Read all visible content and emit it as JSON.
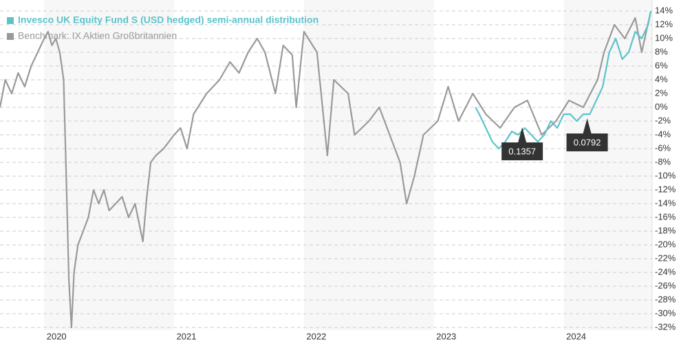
{
  "chart_data": {
    "type": "line",
    "xlim": [
      2019.66,
      2024.68
    ],
    "xticks": [
      2020,
      2021,
      2022,
      2023,
      2024
    ],
    "ylim": [
      -32.4,
      15.6
    ],
    "yticks": [
      {
        "value": 14,
        "label": "14%"
      },
      {
        "value": 12,
        "label": "12%"
      },
      {
        "value": 10,
        "label": "10%"
      },
      {
        "value": 8,
        "label": "8%"
      },
      {
        "value": 6,
        "label": "6%"
      },
      {
        "value": 4,
        "label": "4%"
      },
      {
        "value": 2,
        "label": "2%"
      },
      {
        "value": 0,
        "label": "0%"
      },
      {
        "value": -2,
        "label": "-2%"
      },
      {
        "value": -4,
        "label": "-4%"
      },
      {
        "value": -6,
        "label": "-6%"
      },
      {
        "value": -8,
        "label": "-8%"
      },
      {
        "value": -10,
        "label": "-10%"
      },
      {
        "value": -12,
        "label": "-12%"
      },
      {
        "value": -14,
        "label": "-14%"
      },
      {
        "value": -16,
        "label": "-16%"
      },
      {
        "value": -18,
        "label": "-18%"
      },
      {
        "value": -20,
        "label": "-20%"
      },
      {
        "value": -22,
        "label": "-22%"
      },
      {
        "value": -24,
        "label": "-24%"
      },
      {
        "value": -26,
        "label": "-26%"
      },
      {
        "value": -28,
        "label": "-28%"
      },
      {
        "value": -30,
        "label": "-30%"
      },
      {
        "value": -32,
        "label": "-32%"
      }
    ],
    "grid": true,
    "legend": "top-left",
    "series": [
      {
        "name": "Invesco UK Equity Fund S (USD hedged) semi-annual distribution",
        "color": "#5bc3cb",
        "x": [
          2023.32,
          2023.35,
          2023.4,
          2023.45,
          2023.5,
          2023.55,
          2023.6,
          2023.65,
          2023.7,
          2023.75,
          2023.8,
          2023.85,
          2023.9,
          2023.95,
          2024.0,
          2024.05,
          2024.1,
          2024.15,
          2024.2,
          2024.25,
          2024.3,
          2024.35,
          2024.4,
          2024.45,
          2024.5,
          2024.55,
          2024.6,
          2024.65,
          2024.67
        ],
        "values": [
          0,
          -1,
          -3,
          -5,
          -6,
          -5,
          -3.5,
          -4,
          -3,
          -4,
          -5,
          -4,
          -2,
          -3,
          -1,
          -1,
          -2,
          -1,
          -1,
          1,
          3,
          8,
          10,
          7,
          8,
          11,
          10,
          12,
          14
        ]
      },
      {
        "name": "Benchmark: IX Aktien Großbritannien",
        "color": "#999999",
        "x": [
          2019.66,
          2019.7,
          2019.75,
          2019.8,
          2019.85,
          2019.9,
          2019.95,
          2020.0,
          2020.03,
          2020.06,
          2020.09,
          2020.12,
          2020.15,
          2020.17,
          2020.19,
          2020.21,
          2020.23,
          2020.26,
          2020.3,
          2020.34,
          2020.38,
          2020.42,
          2020.46,
          2020.5,
          2020.55,
          2020.6,
          2020.65,
          2020.7,
          2020.76,
          2020.79,
          2020.82,
          2020.86,
          2020.92,
          2021.0,
          2021.05,
          2021.1,
          2021.15,
          2021.25,
          2021.35,
          2021.43,
          2021.5,
          2021.57,
          2021.64,
          2021.7,
          2021.78,
          2021.84,
          2021.91,
          2021.94,
          2022.0,
          2022.1,
          2022.18,
          2022.23,
          2022.34,
          2022.39,
          2022.5,
          2022.58,
          2022.66,
          2022.74,
          2022.79,
          2022.85,
          2022.92,
          2023.03,
          2023.11,
          2023.19,
          2023.3,
          2023.4,
          2023.51,
          2023.62,
          2023.72,
          2023.83,
          2023.94,
          2024.04,
          2024.15,
          2024.26,
          2024.31,
          2024.39,
          2024.47,
          2024.55,
          2024.6,
          2024.67
        ],
        "values": [
          0,
          4,
          2,
          5,
          3,
          6,
          8,
          10,
          11,
          9,
          10,
          8,
          4,
          -10,
          -25,
          -32,
          -24,
          -20,
          -18,
          -16,
          -12,
          -14,
          -12,
          -15,
          -14,
          -13,
          -16,
          -14,
          -19.5,
          -13,
          -8,
          -7,
          -6,
          -4,
          -3,
          -6,
          -1,
          2,
          4,
          6.6,
          5,
          8,
          10,
          8,
          2,
          9,
          7.6,
          0,
          11,
          8,
          -7,
          4,
          2,
          -4,
          -2,
          0,
          -4,
          -8,
          -14,
          -10,
          -4,
          -2,
          3,
          -2,
          2,
          -1,
          -3,
          0,
          1,
          -4,
          -2,
          1,
          0,
          4,
          8,
          12,
          10,
          13,
          8,
          14
        ]
      }
    ],
    "annotations": [
      {
        "text": "0.1357",
        "x": 2023.68,
        "y": -2.9
      },
      {
        "text": "0.0792",
        "x": 2024.18,
        "y": -1.6
      }
    ]
  }
}
